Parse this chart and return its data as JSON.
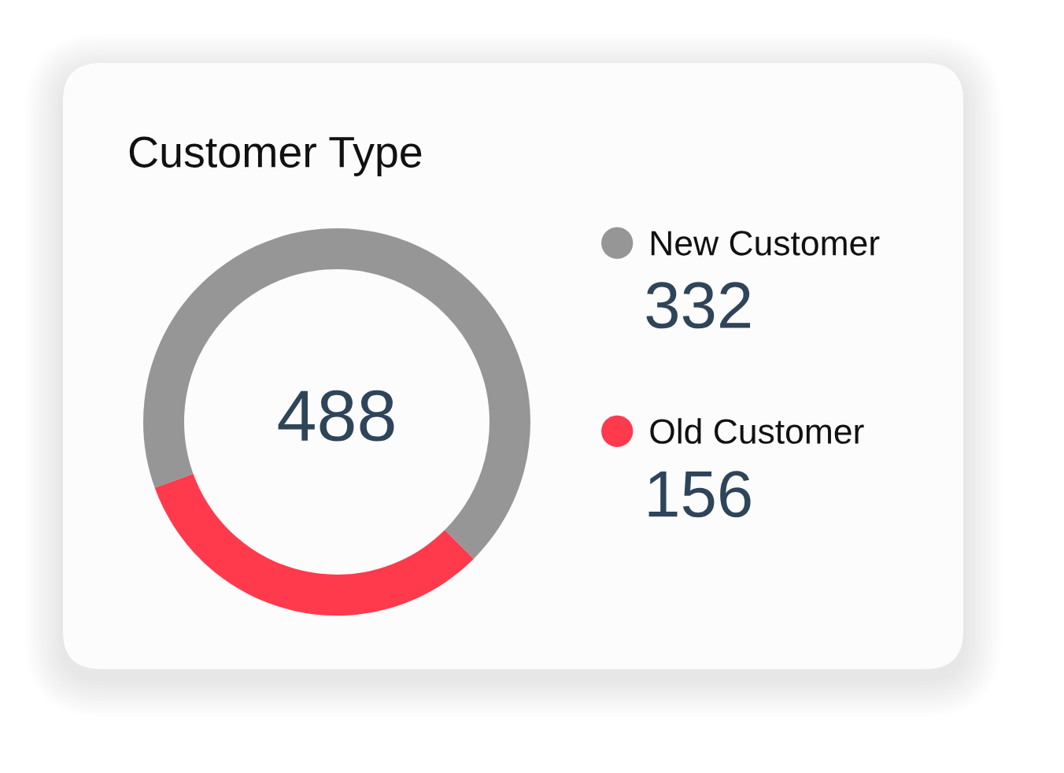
{
  "chart_data": {
    "type": "donut",
    "title": "Customer Type",
    "categories": [
      "New Customer",
      "Old Customer"
    ],
    "values": [
      332,
      156
    ],
    "colors": [
      "#969696",
      "#ff3a4d"
    ],
    "data_labels": true,
    "legend": "right",
    "annotations": [
      "488"
    ]
  }
}
